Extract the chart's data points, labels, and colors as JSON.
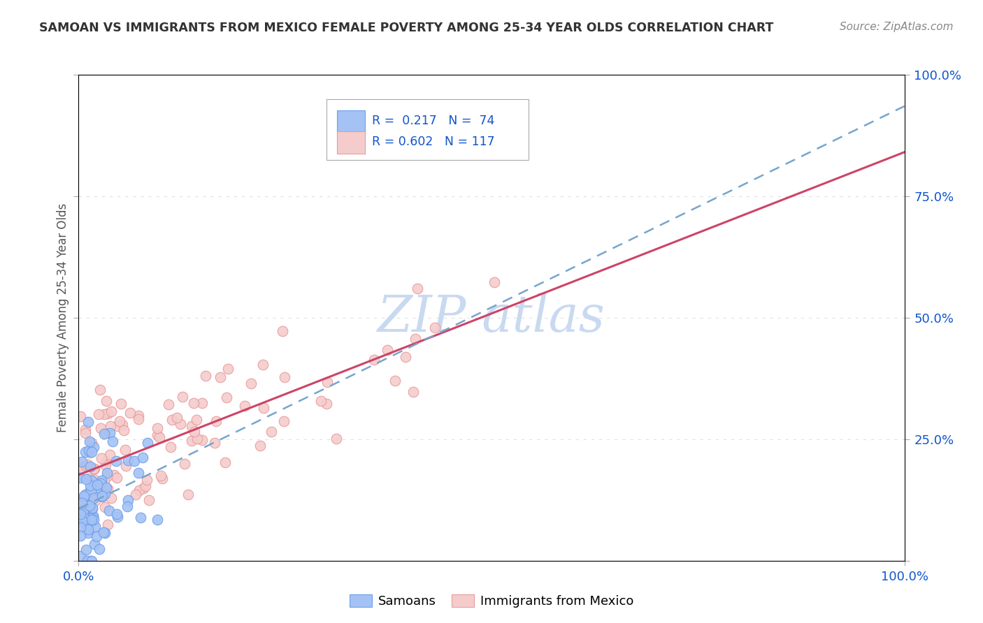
{
  "title": "SAMOAN VS IMMIGRANTS FROM MEXICO FEMALE POVERTY AMONG 25-34 YEAR OLDS CORRELATION CHART",
  "source": "Source: ZipAtlas.com",
  "ylabel": "Female Poverty Among 25-34 Year Olds",
  "xlim": [
    0,
    1.0
  ],
  "ylim": [
    0,
    1.0
  ],
  "legend_text_samoan": "R =  0.217   N =  74",
  "legend_text_mexico": "R = 0.602   N = 117",
  "samoan_face": "#a4c2f4",
  "samoan_edge": "#6d9eeb",
  "mexico_face": "#f4cccc",
  "mexico_edge": "#ea9999",
  "trendline_samoan": "#76a5cd",
  "trendline_mexico": "#cc4466",
  "background_color": "#ffffff",
  "watermark_color": "#c9d9f0",
  "title_color": "#333333",
  "source_color": "#888888",
  "axis_label_color": "#555555",
  "tick_color": "#1155cc",
  "grid_color": "#e0e0e0"
}
